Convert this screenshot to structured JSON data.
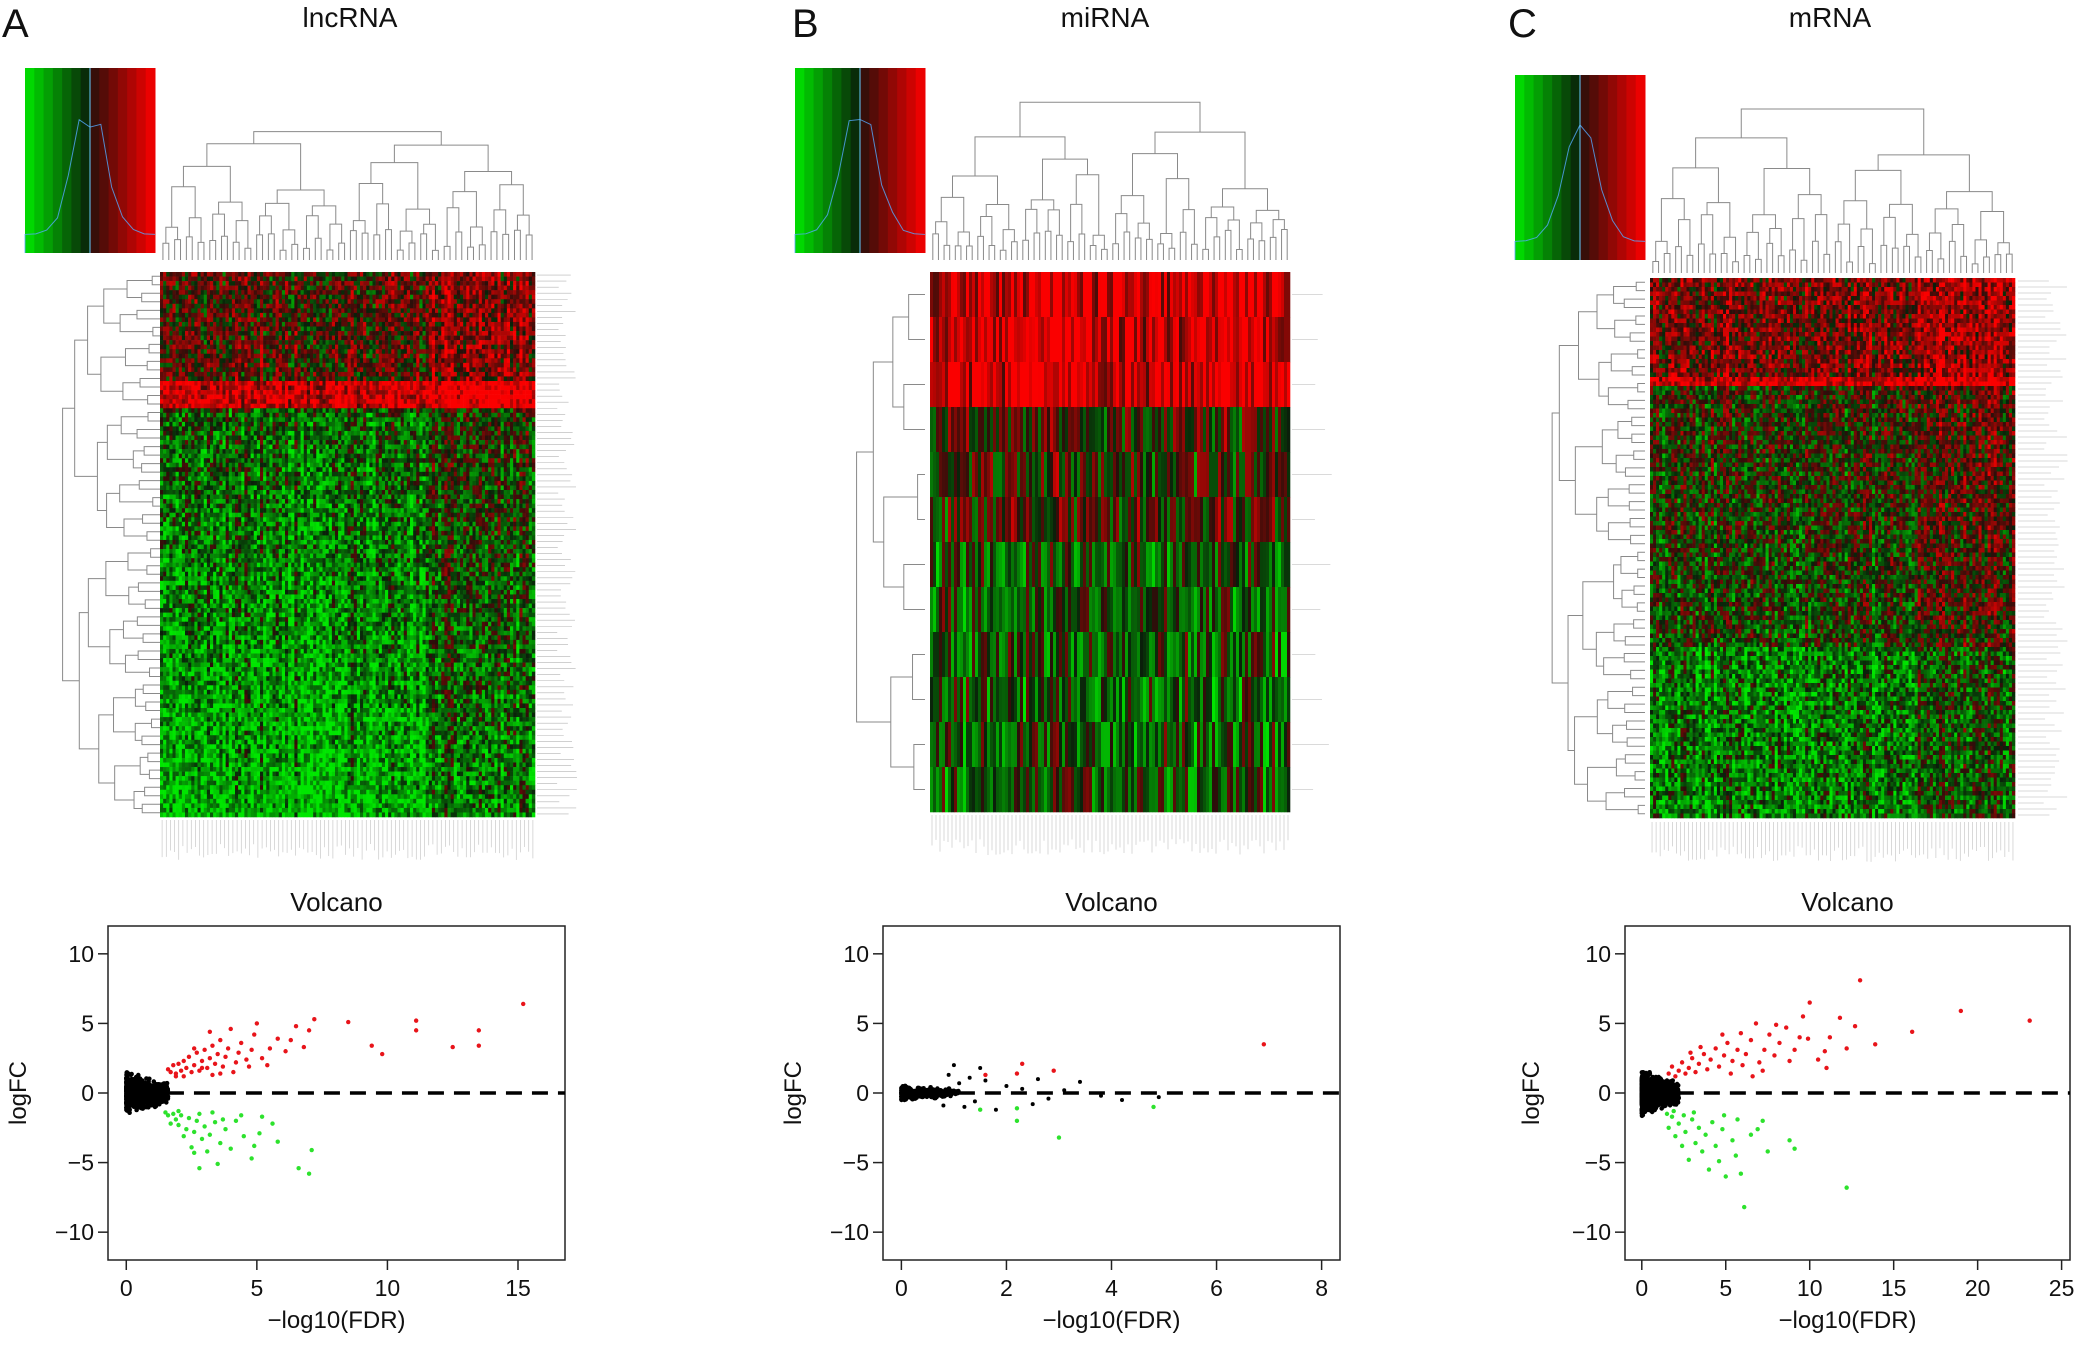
{
  "figure": {
    "panels": [
      {
        "letter": "A",
        "title": "lncRNA"
      },
      {
        "letter": "B",
        "title": "miRNA"
      },
      {
        "letter": "C",
        "title": "mRNA"
      }
    ]
  },
  "colors": {
    "up": "#e8141a",
    "down": "#2de22d",
    "ns": "#000000",
    "heat_low": "#00ee00",
    "heat_mid": "#000000",
    "heat_high": "#ee0000"
  },
  "chart_data": [
    {
      "type": "heatmap",
      "panel": "A",
      "title": "lncRNA",
      "color_key": {
        "low": "green",
        "mid": "black",
        "high": "red"
      },
      "row_count": 180,
      "column_count": 120,
      "row_labels_visible": false,
      "column_labels_visible": false
    },
    {
      "type": "heatmap",
      "panel": "B",
      "title": "miRNA",
      "color_key": {
        "low": "green",
        "mid": "black",
        "high": "red"
      },
      "row_count": 12,
      "column_count": 120,
      "row_labels_visible": false,
      "column_labels_visible": false
    },
    {
      "type": "heatmap",
      "panel": "C",
      "title": "mRNA",
      "color_key": {
        "low": "green",
        "mid": "black",
        "high": "red"
      },
      "row_count": 200,
      "column_count": 120,
      "row_labels_visible": false,
      "column_labels_visible": false
    },
    {
      "type": "scatter",
      "panel": "A",
      "title": "Volcano",
      "xlabel": "−log10(FDR)",
      "ylabel": "logFC",
      "xlim": [
        -0.7,
        16.8
      ],
      "ylim": [
        -12,
        12
      ],
      "xticks": [
        {
          "v": 0,
          "label": "0"
        },
        {
          "v": 5,
          "label": "5"
        },
        {
          "v": 10,
          "label": "10"
        },
        {
          "v": 15,
          "label": "15"
        }
      ],
      "yticks": [
        {
          "v": 10,
          "label": "10"
        },
        {
          "v": 5,
          "label": "5"
        },
        {
          "v": 0,
          "label": "0"
        },
        {
          "v": -5,
          "label": "−5"
        },
        {
          "v": -10,
          "label": "−10"
        }
      ],
      "reference_line_y": 0,
      "up_points": [
        [
          15.2,
          6.4
        ],
        [
          13.5,
          4.5
        ],
        [
          13.5,
          3.4
        ],
        [
          12.5,
          3.3
        ],
        [
          11.1,
          5.2
        ],
        [
          11.1,
          4.5
        ],
        [
          9.8,
          2.8
        ],
        [
          9.4,
          3.4
        ],
        [
          8.5,
          5.1
        ],
        [
          7.2,
          5.3
        ],
        [
          7.0,
          4.5
        ],
        [
          6.8,
          3.3
        ],
        [
          6.5,
          4.8
        ],
        [
          6.3,
          3.8
        ],
        [
          6.1,
          3.0
        ],
        [
          5.8,
          3.9
        ],
        [
          5.5,
          3.2
        ],
        [
          5.2,
          2.5
        ],
        [
          5.0,
          5.0
        ],
        [
          4.9,
          4.2
        ],
        [
          4.8,
          3.1
        ],
        [
          4.6,
          2.4
        ],
        [
          4.4,
          3.6
        ],
        [
          4.3,
          2.9
        ],
        [
          4.2,
          2.2
        ],
        [
          4.0,
          4.6
        ],
        [
          3.9,
          3.2
        ],
        [
          3.8,
          2.6
        ],
        [
          3.7,
          1.9
        ],
        [
          3.6,
          3.8
        ],
        [
          3.5,
          2.8
        ],
        [
          3.4,
          2.1
        ],
        [
          3.3,
          3.4
        ],
        [
          3.2,
          2.5
        ],
        [
          3.1,
          1.8
        ],
        [
          3.0,
          3.1
        ],
        [
          2.9,
          2.3
        ],
        [
          2.8,
          1.6
        ],
        [
          2.7,
          2.9
        ],
        [
          2.6,
          2.0
        ],
        [
          2.5,
          1.5
        ],
        [
          2.4,
          2.6
        ],
        [
          2.3,
          1.8
        ],
        [
          2.2,
          2.3
        ],
        [
          2.1,
          1.6
        ],
        [
          2.0,
          2.1
        ],
        [
          1.9,
          1.4
        ],
        [
          1.8,
          2.0
        ],
        [
          1.7,
          1.5
        ],
        [
          1.6,
          1.7
        ],
        [
          3.2,
          4.4
        ],
        [
          2.6,
          3.2
        ],
        [
          3.6,
          1.4
        ],
        [
          4.7,
          1.9
        ],
        [
          2.2,
          1.2
        ],
        [
          5.4,
          2.0
        ],
        [
          4.1,
          1.5
        ],
        [
          3.3,
          1.3
        ],
        [
          2.9,
          1.8
        ],
        [
          1.9,
          1.2
        ]
      ],
      "down_points": [
        [
          7.0,
          -5.8
        ],
        [
          6.6,
          -5.4
        ],
        [
          7.1,
          -4.1
        ],
        [
          5.8,
          -3.5
        ],
        [
          5.6,
          -2.2
        ],
        [
          5.1,
          -2.9
        ],
        [
          4.8,
          -4.7
        ],
        [
          4.5,
          -3.1
        ],
        [
          4.2,
          -2.0
        ],
        [
          4.0,
          -4.0
        ],
        [
          3.8,
          -2.6
        ],
        [
          3.6,
          -3.6
        ],
        [
          3.5,
          -5.1
        ],
        [
          3.4,
          -2.1
        ],
        [
          3.2,
          -3.0
        ],
        [
          3.1,
          -4.2
        ],
        [
          3.0,
          -2.4
        ],
        [
          2.9,
          -3.3
        ],
        [
          2.8,
          -5.4
        ],
        [
          2.7,
          -2.0
        ],
        [
          2.6,
          -2.8
        ],
        [
          2.5,
          -3.9
        ],
        [
          2.4,
          -1.8
        ],
        [
          2.3,
          -2.6
        ],
        [
          2.2,
          -3.1
        ],
        [
          2.1,
          -1.6
        ],
        [
          2.0,
          -2.3
        ],
        [
          1.9,
          -1.9
        ],
        [
          1.8,
          -1.5
        ],
        [
          1.7,
          -2.2
        ],
        [
          1.6,
          -1.6
        ],
        [
          2.6,
          -4.3
        ],
        [
          3.3,
          -1.4
        ],
        [
          4.4,
          -1.6
        ],
        [
          2.0,
          -1.3
        ],
        [
          3.7,
          -1.9
        ],
        [
          1.5,
          -1.4
        ],
        [
          2.8,
          -1.5
        ],
        [
          5.2,
          -1.7
        ],
        [
          4.9,
          -3.8
        ]
      ]
    },
    {
      "type": "scatter",
      "panel": "B",
      "title": "Volcano",
      "xlabel": "−log10(FDR)",
      "ylabel": "logFC",
      "xlim": [
        -0.35,
        8.35
      ],
      "ylim": [
        -12,
        12
      ],
      "xticks": [
        {
          "v": 0,
          "label": "0"
        },
        {
          "v": 2,
          "label": "2"
        },
        {
          "v": 4,
          "label": "4"
        },
        {
          "v": 6,
          "label": "6"
        },
        {
          "v": 8,
          "label": "8"
        }
      ],
      "yticks": [
        {
          "v": 10,
          "label": "10"
        },
        {
          "v": 5,
          "label": "5"
        },
        {
          "v": 0,
          "label": "0"
        },
        {
          "v": -5,
          "label": "−5"
        },
        {
          "v": -10,
          "label": "−10"
        }
      ],
      "reference_line_y": 0,
      "up_points": [
        [
          6.9,
          3.5
        ],
        [
          2.9,
          1.6
        ],
        [
          2.3,
          2.1
        ],
        [
          2.2,
          1.4
        ],
        [
          1.6,
          1.3
        ]
      ],
      "down_points": [
        [
          3.0,
          -3.2
        ],
        [
          2.2,
          -2.0
        ],
        [
          2.2,
          -1.1
        ],
        [
          1.5,
          -1.2
        ],
        [
          4.8,
          -1.0
        ]
      ],
      "ns_points": [
        [
          1.0,
          2.0
        ],
        [
          1.5,
          1.8
        ],
        [
          1.3,
          1.1
        ],
        [
          0.9,
          1.3
        ],
        [
          2.6,
          1.0
        ],
        [
          3.4,
          0.8
        ],
        [
          4.2,
          -0.5
        ],
        [
          4.9,
          -0.3
        ],
        [
          2.5,
          -0.8
        ],
        [
          1.8,
          -1.2
        ],
        [
          1.2,
          -1.0
        ],
        [
          1.6,
          0.9
        ],
        [
          2.0,
          0.5
        ],
        [
          2.8,
          -0.4
        ],
        [
          3.1,
          0.2
        ],
        [
          0.8,
          -0.9
        ],
        [
          1.4,
          -0.6
        ],
        [
          2.3,
          0.3
        ],
        [
          3.8,
          -0.2
        ],
        [
          1.1,
          0.7
        ]
      ]
    },
    {
      "type": "scatter",
      "panel": "C",
      "title": "Volcano",
      "xlabel": "−log10(FDR)",
      "ylabel": "logFC",
      "xlim": [
        -1.0,
        25.5
      ],
      "ylim": [
        -12,
        12
      ],
      "xticks": [
        {
          "v": 0,
          "label": "0"
        },
        {
          "v": 5,
          "label": "5"
        },
        {
          "v": 10,
          "label": "10"
        },
        {
          "v": 15,
          "label": "15"
        },
        {
          "v": 20,
          "label": "20"
        },
        {
          "v": 25,
          "label": "25"
        }
      ],
      "yticks": [
        {
          "v": 10,
          "label": "10"
        },
        {
          "v": 5,
          "label": "5"
        },
        {
          "v": 0,
          "label": "0"
        },
        {
          "v": -5,
          "label": "−5"
        },
        {
          "v": -10,
          "label": "−10"
        }
      ],
      "reference_line_y": 0,
      "up_points": [
        [
          23.1,
          5.2
        ],
        [
          19.0,
          5.9
        ],
        [
          16.1,
          4.4
        ],
        [
          13.9,
          3.5
        ],
        [
          13.0,
          8.1
        ],
        [
          12.7,
          4.8
        ],
        [
          12.2,
          3.2
        ],
        [
          11.8,
          5.4
        ],
        [
          11.2,
          4.0
        ],
        [
          10.9,
          3.0
        ],
        [
          10.5,
          2.4
        ],
        [
          10.0,
          6.5
        ],
        [
          9.6,
          5.5
        ],
        [
          9.4,
          4.0
        ],
        [
          9.1,
          3.1
        ],
        [
          8.8,
          2.3
        ],
        [
          8.6,
          4.7
        ],
        [
          8.2,
          3.6
        ],
        [
          7.9,
          2.7
        ],
        [
          7.6,
          4.2
        ],
        [
          7.3,
          3.1
        ],
        [
          7.0,
          2.2
        ],
        [
          6.8,
          5.0
        ],
        [
          6.5,
          3.8
        ],
        [
          6.2,
          2.8
        ],
        [
          5.9,
          4.3
        ],
        [
          5.7,
          3.1
        ],
        [
          5.4,
          2.3
        ],
        [
          5.1,
          3.6
        ],
        [
          4.9,
          2.7
        ],
        [
          4.6,
          1.9
        ],
        [
          4.4,
          3.2
        ],
        [
          4.1,
          2.4
        ],
        [
          3.9,
          1.7
        ],
        [
          3.7,
          2.8
        ],
        [
          3.4,
          2.1
        ],
        [
          3.2,
          1.5
        ],
        [
          3.0,
          2.5
        ],
        [
          2.8,
          1.8
        ],
        [
          2.6,
          1.4
        ],
        [
          2.4,
          2.2
        ],
        [
          2.2,
          1.6
        ],
        [
          2.0,
          1.2
        ],
        [
          1.8,
          1.9
        ],
        [
          1.6,
          1.4
        ],
        [
          9.9,
          3.9
        ],
        [
          8.0,
          4.9
        ],
        [
          6.0,
          2.0
        ],
        [
          4.8,
          4.2
        ],
        [
          3.5,
          3.3
        ],
        [
          2.9,
          2.9
        ],
        [
          7.2,
          1.6
        ],
        [
          11.0,
          1.8
        ],
        [
          5.3,
          1.4
        ],
        [
          6.6,
          1.2
        ]
      ],
      "down_points": [
        [
          12.2,
          -6.8
        ],
        [
          7.5,
          -4.2
        ],
        [
          6.1,
          -8.2
        ],
        [
          5.9,
          -5.8
        ],
        [
          5.6,
          -4.5
        ],
        [
          5.4,
          -3.4
        ],
        [
          5.0,
          -6.0
        ],
        [
          4.8,
          -2.6
        ],
        [
          4.6,
          -4.9
        ],
        [
          4.4,
          -3.8
        ],
        [
          4.2,
          -2.1
        ],
        [
          4.0,
          -5.5
        ],
        [
          3.8,
          -3.0
        ],
        [
          3.6,
          -4.2
        ],
        [
          3.4,
          -2.5
        ],
        [
          3.2,
          -3.6
        ],
        [
          3.0,
          -1.9
        ],
        [
          2.8,
          -4.8
        ],
        [
          2.6,
          -2.8
        ],
        [
          2.4,
          -3.8
        ],
        [
          2.2,
          -2.2
        ],
        [
          2.0,
          -3.1
        ],
        [
          1.8,
          -1.7
        ],
        [
          1.6,
          -2.5
        ],
        [
          1.5,
          -1.5
        ],
        [
          7.2,
          -2.0
        ],
        [
          6.5,
          -3.0
        ],
        [
          9.1,
          -4.0
        ],
        [
          8.8,
          -3.4
        ],
        [
          3.1,
          -1.4
        ],
        [
          2.5,
          -1.6
        ],
        [
          1.9,
          -1.3
        ],
        [
          6.9,
          -2.6
        ],
        [
          4.9,
          -1.6
        ],
        [
          5.7,
          -1.9
        ]
      ]
    }
  ]
}
